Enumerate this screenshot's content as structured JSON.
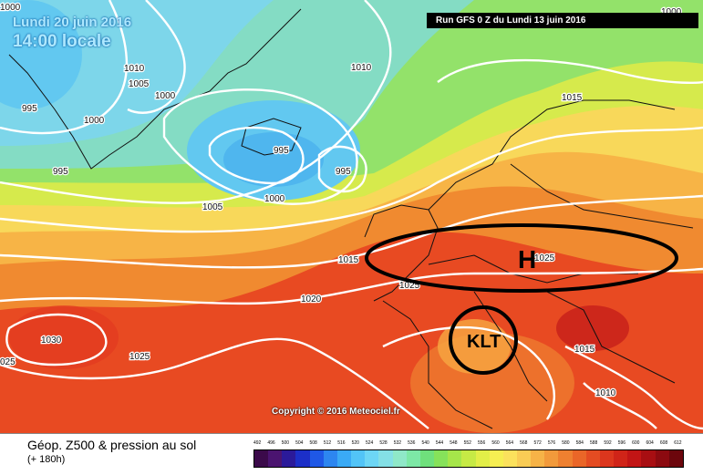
{
  "header": {
    "date": "Lundi 20 juin 2016",
    "time": "14:00 locale",
    "run": "Run GFS 0 Z du Lundi 13 juin 2016"
  },
  "map": {
    "pressure_labels": [
      "1000",
      "1010",
      "1005",
      "1000",
      "995",
      "1000",
      "1010",
      "1015",
      "995",
      "995",
      "995",
      "1000",
      "1005",
      "1015",
      "1020",
      "1025",
      "1030",
      "1025",
      "1025",
      "1015",
      "1010",
      "025",
      "1000"
    ],
    "annotations": {
      "high": "H",
      "high_value": "1025",
      "kt": "KLT"
    },
    "copyright": "Copyright © 2016 Meteociel.fr"
  },
  "footer": {
    "title": "Géop. Z500 & pression au sol",
    "subtitle": "(+ 180h)",
    "scale_values": [
      "492",
      "496",
      "500",
      "504",
      "508",
      "512",
      "516",
      "520",
      "524",
      "528",
      "532",
      "536",
      "540",
      "544",
      "548",
      "552",
      "556",
      "560",
      "564",
      "568",
      "572",
      "576",
      "580",
      "584",
      "588",
      "592",
      "596",
      "600",
      "604",
      "608",
      "612"
    ],
    "scale_colors": [
      "#3b0a4a",
      "#4b1470",
      "#2b1a9a",
      "#1c2fc8",
      "#1f58e6",
      "#2d86f0",
      "#3aaaf5",
      "#52c4f7",
      "#6dd6f5",
      "#84e0e6",
      "#8fe8c8",
      "#7de8a6",
      "#6fe07c",
      "#86e25a",
      "#a6e64a",
      "#c6ea45",
      "#e2ee48",
      "#f6ee52",
      "#fbe15c",
      "#f9cc55",
      "#f6b347",
      "#f29a3b",
      "#ee8030",
      "#ea6628",
      "#e44c22",
      "#dc361d",
      "#d02418",
      "#c21515",
      "#a80e12",
      "#8c0a10",
      "#6c060c"
    ]
  }
}
